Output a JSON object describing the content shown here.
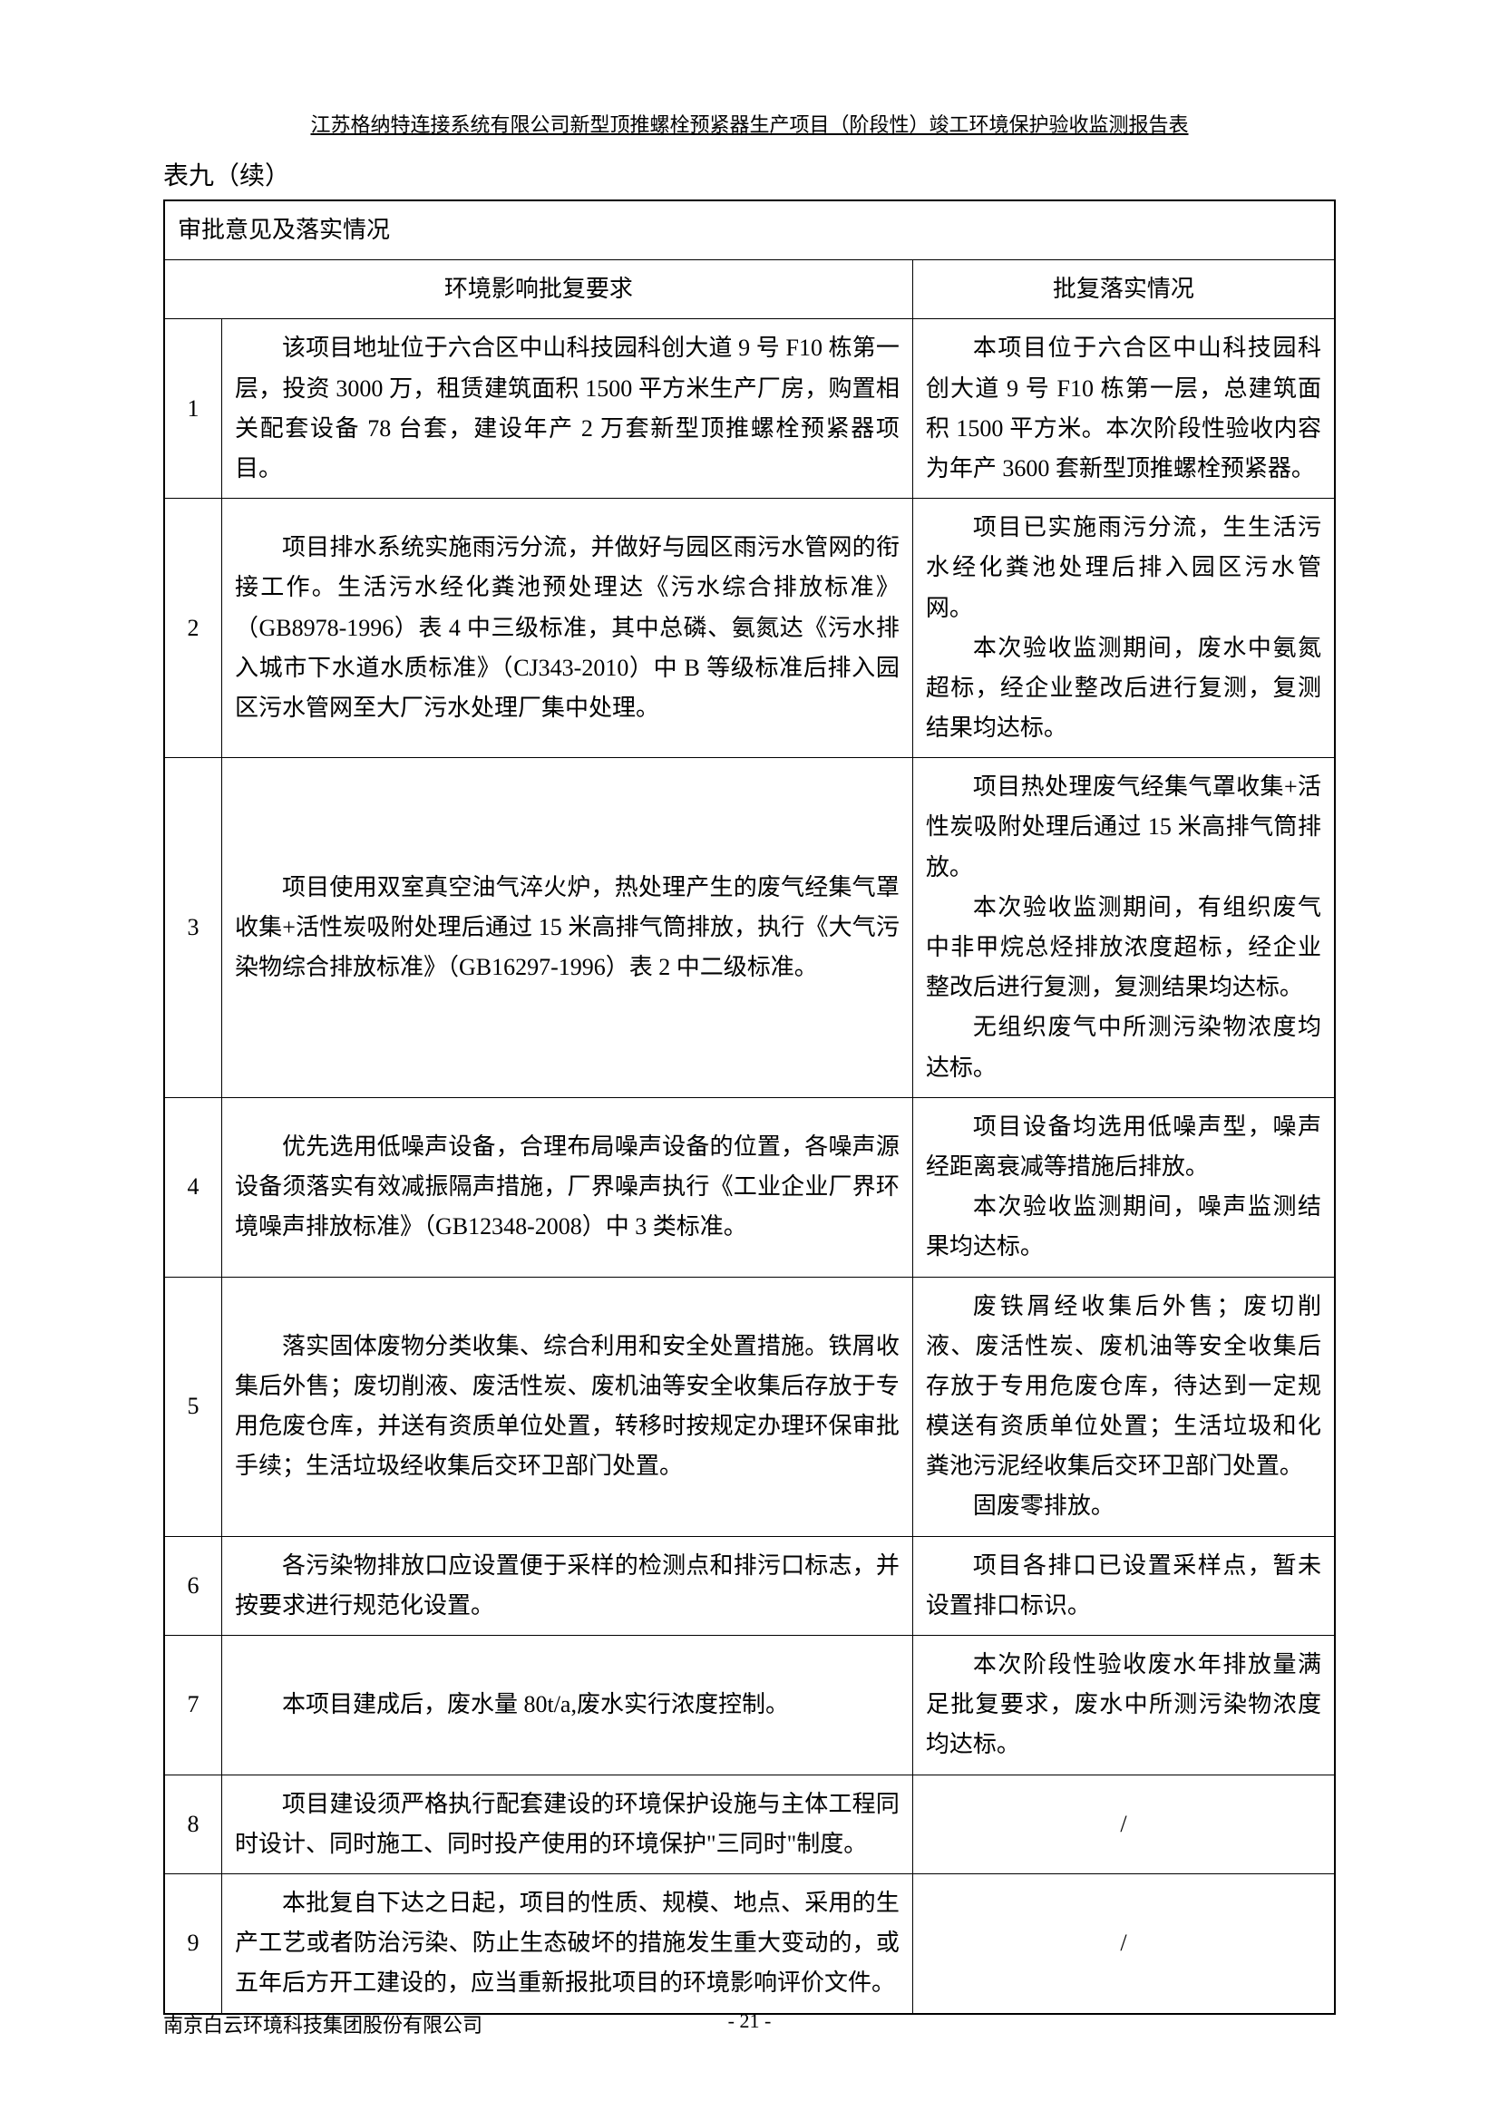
{
  "header": {
    "title": "江苏格纳特连接系统有限公司新型顶推螺栓预紧器生产项目（阶段性）竣工环境保护验收监测报告表"
  },
  "tableTitle": "表九（续）",
  "sectionHeader": "审批意见及落实情况",
  "columns": {
    "requirement": "环境影响批复要求",
    "status": "批复落实情况"
  },
  "rows": [
    {
      "num": "1",
      "requirement": "该项目地址位于六合区中山科技园科创大道 9 号 F10 栋第一层，投资 3000 万，租赁建筑面积 1500 平方米生产厂房，购置相关配套设备 78 台套，建设年产 2 万套新型顶推螺栓预紧器项目。",
      "status": "本项目位于六合区中山科技园科创大道 9 号 F10 栋第一层，总建筑面积 1500 平方米。本次阶段性验收内容为年产 3600 套新型顶推螺栓预紧器。"
    },
    {
      "num": "2",
      "requirement": "项目排水系统实施雨污分流，并做好与园区雨污水管网的衔接工作。生活污水经化粪池预处理达《污水综合排放标准》（GB8978-1996）表 4 中三级标准，其中总磷、氨氮达《污水排入城市下水道水质标准》（CJ343-2010）中 B 等级标准后排入园区污水管网至大厂污水处理厂集中处理。",
      "status_parts": [
        "项目已实施雨污分流，生生活污水经化粪池处理后排入园区污水管网。",
        "本次验收监测期间，废水中氨氮超标，经企业整改后进行复测，复测结果均达标。"
      ]
    },
    {
      "num": "3",
      "requirement": "项目使用双室真空油气淬火炉，热处理产生的废气经集气罩收集+活性炭吸附处理后通过 15 米高排气筒排放，执行《大气污染物综合排放标准》（GB16297-1996）表 2 中二级标准。",
      "status_parts": [
        "项目热处理废气经集气罩收集+活性炭吸附处理后通过 15 米高排气筒排放。",
        "本次验收监测期间，有组织废气中非甲烷总烃排放浓度超标，经企业整改后进行复测，复测结果均达标。",
        "无组织废气中所测污染物浓度均达标。"
      ]
    },
    {
      "num": "4",
      "requirement": "优先选用低噪声设备，合理布局噪声设备的位置，各噪声源设备须落实有效减振隔声措施，厂界噪声执行《工业企业厂界环境噪声排放标准》（GB12348-2008）中 3 类标准。",
      "status_parts": [
        "项目设备均选用低噪声型，噪声经距离衰减等措施后排放。",
        "本次验收监测期间，噪声监测结果均达标。"
      ]
    },
    {
      "num": "5",
      "requirement": "落实固体废物分类收集、综合利用和安全处置措施。铁屑收集后外售；废切削液、废活性炭、废机油等安全收集后存放于专用危废仓库，并送有资质单位处置，转移时按规定办理环保审批手续；生活垃圾经收集后交环卫部门处置。",
      "status_parts": [
        "废铁屑经收集后外售；废切削液、废活性炭、废机油等安全收集后存放于专用危废仓库，待达到一定规模送有资质单位处置；生活垃圾和化粪池污泥经收集后交环卫部门处置。",
        "固废零排放。"
      ]
    },
    {
      "num": "6",
      "requirement": "各污染物排放口应设置便于采样的检测点和排污口标志，并按要求进行规范化设置。",
      "status": "项目各排口已设置采样点，暂未设置排口标识。"
    },
    {
      "num": "7",
      "requirement": "本项目建成后，废水量 80t/a,废水实行浓度控制。",
      "status": "本次阶段性验收废水年排放量满足批复要求，废水中所测污染物浓度均达标。"
    },
    {
      "num": "8",
      "requirement": "项目建设须严格执行配套建设的环境保护设施与主体工程同时设计、同时施工、同时投产使用的环境保护\"三同时\"制度。",
      "status": "/"
    },
    {
      "num": "9",
      "requirement": "本批复自下达之日起，项目的性质、规模、地点、采用的生产工艺或者防治污染、防止生态破坏的措施发生重大变动的，或五年后方开工建设的，应当重新报批项目的环境影响评价文件。",
      "status": "/"
    }
  ],
  "footer": {
    "company": "南京白云环境科技集团股份有限公司",
    "page": "- 21 -"
  }
}
